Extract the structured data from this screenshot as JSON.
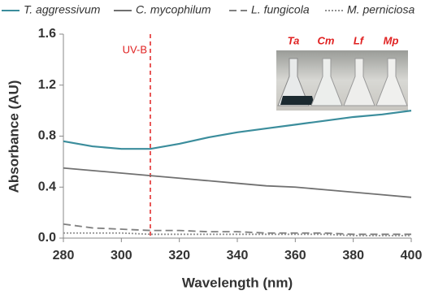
{
  "chart_data": {
    "type": "line",
    "x_label": "Wavelength (nm)",
    "y_label": "Absorbance (AU)",
    "x": [
      280,
      290,
      300,
      310,
      320,
      330,
      340,
      350,
      360,
      370,
      380,
      390,
      400
    ],
    "series": [
      {
        "name": "T. aggressivum",
        "color": "#3b8d9c",
        "dash": "solid",
        "values": [
          0.76,
          0.72,
          0.7,
          0.7,
          0.74,
          0.79,
          0.83,
          0.86,
          0.89,
          0.92,
          0.95,
          0.97,
          1.0
        ]
      },
      {
        "name": "C. mycophilum",
        "color": "#707070",
        "dash": "solid",
        "values": [
          0.55,
          0.53,
          0.51,
          0.49,
          0.47,
          0.45,
          0.43,
          0.41,
          0.4,
          0.38,
          0.36,
          0.34,
          0.32
        ]
      },
      {
        "name": "L. fungicola",
        "color": "#808080",
        "dash": "dashed",
        "values": [
          0.11,
          0.08,
          0.07,
          0.06,
          0.06,
          0.05,
          0.05,
          0.04,
          0.04,
          0.04,
          0.03,
          0.03,
          0.03
        ]
      },
      {
        "name": "M. perniciosa",
        "color": "#909090",
        "dash": "dotted",
        "values": [
          0.04,
          0.04,
          0.04,
          0.03,
          0.03,
          0.03,
          0.03,
          0.03,
          0.03,
          0.03,
          0.02,
          0.02,
          0.02
        ]
      }
    ],
    "xlim": [
      280,
      400
    ],
    "xticks": [
      280,
      300,
      320,
      340,
      360,
      380,
      400
    ],
    "ylim": [
      0,
      1.6
    ],
    "yticks": [
      {
        "value": 0,
        "label": "0.0"
      },
      0.4,
      0.8,
      1.2,
      1.6
    ],
    "grid": false,
    "legend": "top",
    "annotations": [
      {
        "text": "UV-B",
        "x": 310,
        "color": "#e02020"
      }
    ],
    "inset_labels": [
      "Ta",
      "Cm",
      "Lf",
      "Mp"
    ],
    "inset_label_color": "#e02020"
  }
}
